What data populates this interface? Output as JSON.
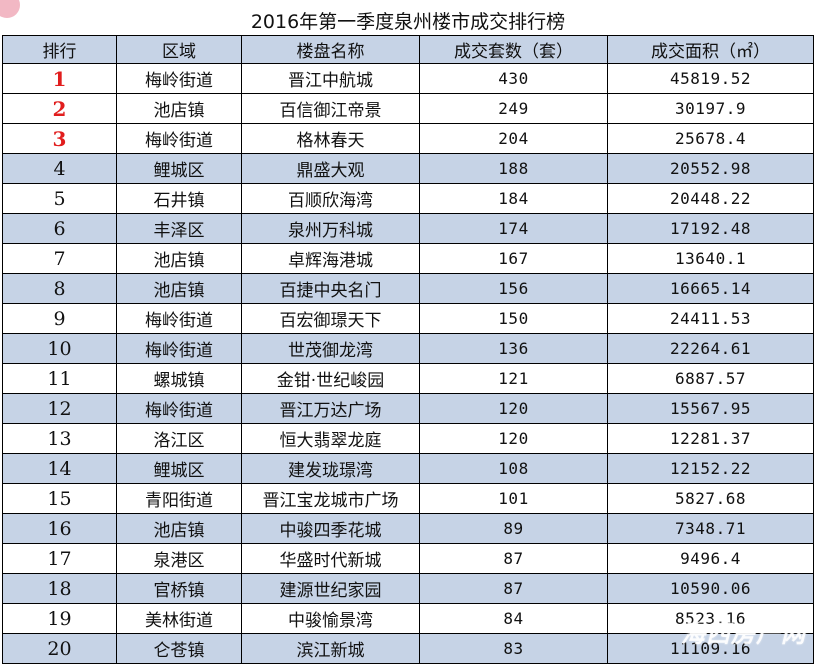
{
  "title": "2016年第一季度泉州楼市成交排行榜",
  "columns": [
    "排行",
    "区域",
    "楼盘名称",
    "成交套数（套）",
    "成交面积（㎡）"
  ],
  "rows": [
    [
      "1",
      "梅岭街道",
      "晋江中航城",
      "430",
      "45819.52"
    ],
    [
      "2",
      "池店镇",
      "百信御江帝景",
      "249",
      "30197.9"
    ],
    [
      "3",
      "梅岭街道",
      "格林春天",
      "204",
      "25678.4"
    ],
    [
      "4",
      "鲤城区",
      "鼎盛大观",
      "188",
      "20552.98"
    ],
    [
      "5",
      "石井镇",
      "百顺欣海湾",
      "184",
      "20448.22"
    ],
    [
      "6",
      "丰泽区",
      "泉州万科城",
      "174",
      "17192.48"
    ],
    [
      "7",
      "池店镇",
      "卓辉海港城",
      "167",
      "13640.1"
    ],
    [
      "8",
      "池店镇",
      "百捷中央名门",
      "156",
      "16665.14"
    ],
    [
      "9",
      "梅岭街道",
      "百宏御璟天下",
      "150",
      "24411.53"
    ],
    [
      "10",
      "梅岭街道",
      "世茂御龙湾",
      "136",
      "22264.61"
    ],
    [
      "11",
      "螺城镇",
      "金钳·世纪峻园",
      "121",
      "6887.57"
    ],
    [
      "12",
      "梅岭街道",
      "晋江万达广场",
      "120",
      "15567.95"
    ],
    [
      "13",
      "洛江区",
      "恒大翡翠龙庭",
      "120",
      "12281.37"
    ],
    [
      "14",
      "鲤城区",
      "建发珑璟湾",
      "108",
      "12152.22"
    ],
    [
      "15",
      "青阳街道",
      "晋江宝龙城市广场",
      "101",
      "5827.68"
    ],
    [
      "16",
      "池店镇",
      "中骏四季花城",
      "89",
      "7348.71"
    ],
    [
      "17",
      "泉港区",
      "华盛时代新城",
      "87",
      "9496.4"
    ],
    [
      "18",
      "官桥镇",
      "建源世纪家园",
      "87",
      "10590.06"
    ],
    [
      "19",
      "美林街道",
      "中骏愉景湾",
      "84",
      "8523.16"
    ],
    [
      "20",
      "仑苍镇",
      "滨江新城",
      "83",
      "11109.16"
    ]
  ],
  "highlight_color": "#e11d1d",
  "stripe_color": "#c6d3e6",
  "watermark": "海西房产网"
}
